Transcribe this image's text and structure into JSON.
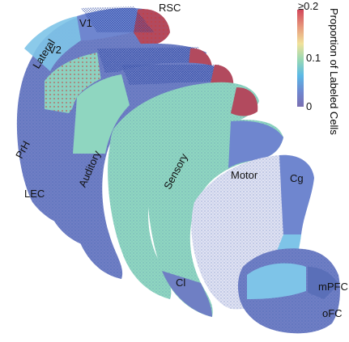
{
  "regions": {
    "rsc": "RSC",
    "v1": "V1",
    "lateral": "Lateral",
    "v2": "V2",
    "prh": "PrH",
    "lec": "LEC",
    "auditory": "Auditory",
    "sensory": "Sensory",
    "motor": "Motor",
    "cg": "Cg",
    "cl": "Cl",
    "mpfc": "mPFC",
    "ofc": "oFC"
  },
  "colorbar": {
    "title": "Proportion of Labeled Cells",
    "ticks": [
      "≥0.2",
      "0.1",
      "0"
    ],
    "colors": [
      "#d2475a",
      "#e7b07a",
      "#f1e29a",
      "#7fd0b0",
      "#5bb8e6",
      "#6f86cf",
      "#7a6fb2"
    ]
  },
  "colors": {
    "low": "#6f7fc4",
    "teal": "#8fd6c0",
    "light_blue": "#7ec4e8",
    "high": "#b24a5e",
    "dots": "#2a49a8"
  }
}
